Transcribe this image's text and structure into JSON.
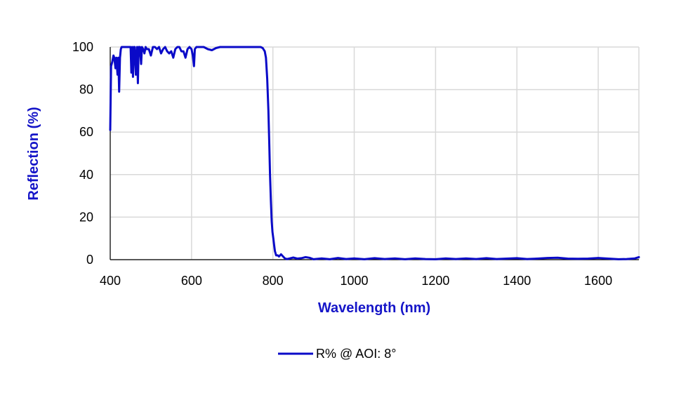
{
  "colors": {
    "series": "#0a0ac8",
    "grid": "#d9d9d9",
    "axis_title": "#1515c8"
  },
  "chart_data": {
    "type": "line",
    "title": "",
    "xlabel": "Wavelength (nm)",
    "ylabel": "Reflection  (%)",
    "xlim": [
      400,
      1700
    ],
    "ylim": [
      0,
      100
    ],
    "xticks": [
      400,
      600,
      800,
      1000,
      1200,
      1400,
      1600
    ],
    "yticks": [
      0,
      20,
      40,
      60,
      80,
      100
    ],
    "grid": true,
    "legend_position": "bottom",
    "series": [
      {
        "name": "R% @ AOI: 8°",
        "x": [
          400,
          402,
          405,
          408,
          410,
          413,
          415,
          418,
          420,
          422,
          424,
          426,
          428,
          430,
          435,
          440,
          445,
          450,
          452,
          454,
          456,
          458,
          460,
          463,
          466,
          468,
          470,
          473,
          476,
          478,
          481,
          484,
          487,
          490,
          495,
          500,
          505,
          510,
          515,
          520,
          525,
          530,
          535,
          540,
          545,
          550,
          555,
          560,
          565,
          570,
          575,
          580,
          585,
          590,
          595,
          600,
          603,
          606,
          608,
          612,
          620,
          630,
          640,
          650,
          660,
          670,
          680,
          700,
          720,
          740,
          760,
          770,
          775,
          780,
          783,
          786,
          789,
          791,
          793,
          795,
          797,
          799,
          801,
          803,
          805,
          808,
          812,
          815,
          820,
          825,
          830,
          835,
          840,
          850,
          860,
          870,
          880,
          890,
          900,
          920,
          940,
          960,
          980,
          1000,
          1025,
          1050,
          1075,
          1100,
          1125,
          1150,
          1175,
          1200,
          1225,
          1250,
          1275,
          1300,
          1325,
          1350,
          1375,
          1400,
          1425,
          1450,
          1475,
          1500,
          1525,
          1550,
          1575,
          1600,
          1625,
          1650,
          1670,
          1690,
          1700
        ],
        "values": [
          61,
          91,
          93,
          96,
          95,
          90,
          95,
          87,
          95,
          79,
          95,
          99,
          100,
          100,
          100,
          100,
          100,
          100,
          88,
          100,
          86,
          100,
          100,
          87,
          100,
          83,
          100,
          100,
          92,
          100,
          99,
          97,
          100,
          99,
          99,
          96,
          100,
          100,
          99,
          100,
          97,
          99,
          100,
          98,
          97,
          98,
          95,
          99,
          100,
          100,
          98,
          98,
          95,
          99,
          100,
          99,
          96,
          91,
          99,
          100,
          100,
          100,
          99,
          98.5,
          99.5,
          100,
          100,
          100,
          100,
          100,
          100,
          100,
          99.5,
          98,
          95,
          85,
          70,
          55,
          40,
          28,
          18,
          13,
          10,
          7,
          4,
          2,
          2,
          1.5,
          2.5,
          1.5,
          0.5,
          0.3,
          0.5,
          1,
          0.5,
          0.7,
          1.2,
          0.9,
          0.2,
          0.6,
          0.2,
          0.8,
          0.3,
          0.6,
          0.2,
          0.7,
          0.3,
          0.6,
          0.2,
          0.6,
          0.3,
          0.2,
          0.6,
          0.3,
          0.6,
          0.3,
          0.7,
          0.3,
          0.5,
          0.7,
          0.3,
          0.5,
          0.8,
          0.9,
          0.5,
          0.4,
          0.5,
          0.8,
          0.5,
          0.2,
          0.3,
          0.6,
          1.2
        ]
      }
    ]
  }
}
